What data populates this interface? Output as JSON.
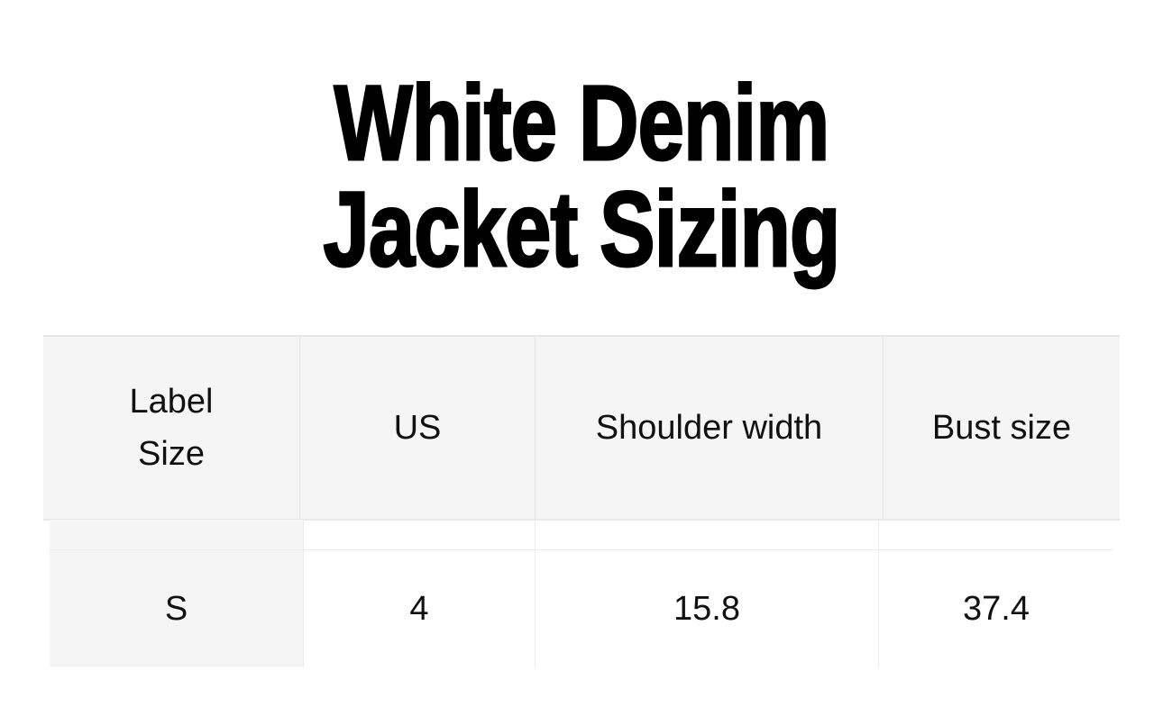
{
  "title": {
    "line1": "White Denim",
    "line2": "Jacket Sizing"
  },
  "table": {
    "headers": [
      {
        "line1": "Label",
        "line2": "Size"
      },
      {
        "line1": "US"
      },
      {
        "line1": "Shoulder width"
      },
      {
        "line1": "Bust size"
      }
    ],
    "rows": [
      [
        "S",
        "4",
        "15.8",
        "37.4"
      ]
    ]
  }
}
